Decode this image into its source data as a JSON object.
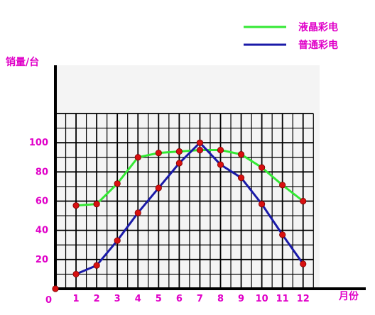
{
  "chart_data": {
    "type": "line",
    "ylabel": "销量/台",
    "xlabel": "月份",
    "origin_label": "0",
    "x": [
      1,
      2,
      3,
      4,
      5,
      6,
      7,
      8,
      9,
      10,
      11,
      12
    ],
    "x_tick_labels": [
      "1",
      "2",
      "3",
      "4",
      "5",
      "6",
      "7",
      "8",
      "9",
      "10",
      "11",
      "12"
    ],
    "y_ticks": [
      20,
      40,
      60,
      80,
      100
    ],
    "y_tick_labels": [
      "20",
      "40",
      "60",
      "80",
      "100"
    ],
    "xlim": [
      0,
      12.8
    ],
    "ylim": [
      0,
      120
    ],
    "grid": true,
    "legend_position": "top-right",
    "series": [
      {
        "name": "液晶彩电",
        "color": "#33e833",
        "values": [
          57,
          58,
          72,
          90,
          93,
          94,
          95,
          95,
          92,
          83,
          71,
          60
        ]
      },
      {
        "name": "普通彩电",
        "color": "#1a1aa8",
        "values": [
          10,
          16,
          33,
          52,
          69,
          86,
          100,
          85,
          76,
          58,
          37,
          17
        ]
      }
    ],
    "origin_point": {
      "x": 0,
      "y": 0
    },
    "marker_color": "#d81010"
  }
}
